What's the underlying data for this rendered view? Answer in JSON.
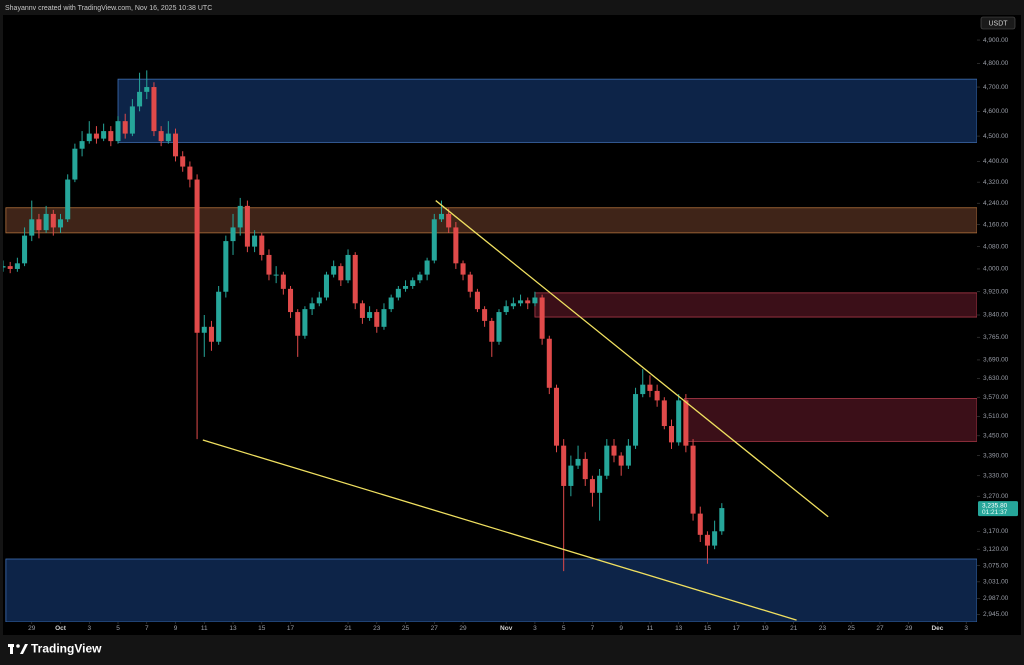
{
  "chart_data": {
    "type": "candlestick",
    "watermark": "Shayannv created with TradingView.com, Nov 16, 2025 10:38 UTC",
    "currency": "USDT",
    "brand": "TradingView",
    "log_scale": true,
    "up_color": "#26a69a",
    "down_color": "#e04a4a",
    "xlim": [
      270.0,
      337.75
    ],
    "ylim": [
      2925,
      5010
    ],
    "xticks": [
      {
        "value": 272,
        "label": "29"
      },
      {
        "value": 274,
        "label": "Oct"
      },
      {
        "value": 276,
        "label": "3"
      },
      {
        "value": 278,
        "label": "5"
      },
      {
        "value": 280,
        "label": "7"
      },
      {
        "value": 282,
        "label": "9"
      },
      {
        "value": 284,
        "label": "11"
      },
      {
        "value": 286,
        "label": "13"
      },
      {
        "value": 288,
        "label": "15"
      },
      {
        "value": 290,
        "label": "17"
      },
      {
        "value": 294,
        "label": "21"
      },
      {
        "value": 296,
        "label": "23"
      },
      {
        "value": 298,
        "label": "25"
      },
      {
        "value": 300,
        "label": "27"
      },
      {
        "value": 302,
        "label": "29"
      },
      {
        "value": 305,
        "label": "Nov"
      },
      {
        "value": 307,
        "label": "3"
      },
      {
        "value": 309,
        "label": "5"
      },
      {
        "value": 311,
        "label": "7"
      },
      {
        "value": 313,
        "label": "9"
      },
      {
        "value": 315,
        "label": "11"
      },
      {
        "value": 317,
        "label": "13"
      },
      {
        "value": 319,
        "label": "15"
      },
      {
        "value": 321,
        "label": "17"
      },
      {
        "value": 323,
        "label": "19"
      },
      {
        "value": 325,
        "label": "21"
      },
      {
        "value": 327,
        "label": "23"
      },
      {
        "value": 329,
        "label": "25"
      },
      {
        "value": 331,
        "label": "27"
      },
      {
        "value": 333,
        "label": "29"
      },
      {
        "value": 335,
        "label": "Dec"
      },
      {
        "value": 337,
        "label": "3"
      }
    ],
    "yticks": [
      {
        "value": 4900,
        "label": "4,900.00"
      },
      {
        "value": 4800,
        "label": "4,800.00"
      },
      {
        "value": 4700,
        "label": "4,700.00"
      },
      {
        "value": 4600,
        "label": "4,600.00"
      },
      {
        "value": 4500,
        "label": "4,500.00"
      },
      {
        "value": 4400,
        "label": "4,400.00"
      },
      {
        "value": 4320,
        "label": "4,320.00"
      },
      {
        "value": 4240,
        "label": "4,240.00"
      },
      {
        "value": 4160,
        "label": "4,160.00"
      },
      {
        "value": 4080,
        "label": "4,080.00"
      },
      {
        "value": 4000,
        "label": "4,000.00"
      },
      {
        "value": 3920,
        "label": "3,920.00"
      },
      {
        "value": 3840,
        "label": "3,840.00"
      },
      {
        "value": 3765,
        "label": "3,765.00"
      },
      {
        "value": 3690,
        "label": "3,690.00"
      },
      {
        "value": 3630,
        "label": "3,630.00"
      },
      {
        "value": 3570,
        "label": "3,570.00"
      },
      {
        "value": 3510,
        "label": "3,510.00"
      },
      {
        "value": 3450,
        "label": "3,450.00"
      },
      {
        "value": 3390,
        "label": "3,390.00"
      },
      {
        "value": 3330,
        "label": "3,330.00"
      },
      {
        "value": 3270,
        "label": "3,270.00"
      },
      {
        "value": 3170,
        "label": "3,170.00"
      },
      {
        "value": 3120,
        "label": "3,120.00"
      },
      {
        "value": 3075,
        "label": "3,075.00"
      },
      {
        "value": 3031,
        "label": "3,031.00"
      },
      {
        "value": 2987,
        "label": "2,987.00"
      },
      {
        "value": 2945,
        "label": "2,945.00"
      }
    ],
    "current_price": {
      "value": 3235.8,
      "label": "3,235.80"
    },
    "countdown": "01:21:37",
    "zones": [
      {
        "x0": 278.0,
        "y": [
          4475,
          4733
        ],
        "fill": "#0f2a55",
        "stroke": "#3f6fb5"
      },
      {
        "x0": 270.2,
        "y": [
          4130,
          4223
        ],
        "fill": "#4a2a1c",
        "stroke": "#b0703c"
      },
      {
        "x0": 307.0,
        "y": [
          3833,
          3916
        ],
        "fill": "#45121c",
        "stroke": "#b03a4a"
      },
      {
        "x0": 317.4,
        "y": [
          3433,
          3566
        ],
        "fill": "#45121c",
        "stroke": "#b03a4a"
      },
      {
        "x0": 270.2,
        "y": [
          2925,
          3093
        ],
        "fill": "#0f2a55",
        "stroke": "#3f6fb5"
      }
    ],
    "trendline_color": "#f0e060",
    "trendlines": [
      {
        "x": [
          300.1,
          327.4
        ],
        "y": [
          4250,
          3211
        ]
      },
      {
        "x": [
          283.9,
          325.2
        ],
        "y": [
          3437,
          2930
        ]
      }
    ],
    "x": [
      270,
      270.5,
      271,
      271.5,
      272,
      272.5,
      273,
      273.5,
      274,
      274.5,
      275,
      275.5,
      276,
      276.5,
      277,
      277.5,
      278,
      278.5,
      279,
      279.5,
      280,
      280.5,
      281,
      281.5,
      282,
      282.5,
      283,
      283.5,
      284,
      284.5,
      285,
      285.5,
      286,
      286.5,
      287,
      287.5,
      288,
      288.5,
      289,
      289.5,
      290,
      290.5,
      291,
      291.5,
      292,
      292.5,
      293,
      293.5,
      294,
      294.5,
      295,
      295.5,
      296,
      296.5,
      297,
      297.5,
      298,
      298.5,
      299,
      299.5,
      300,
      300.5,
      301,
      301.5,
      302,
      302.5,
      303,
      303.5,
      304,
      304.5,
      305,
      305.5,
      306,
      306.5,
      307,
      307.5,
      308,
      308.5,
      309,
      309.5,
      310,
      310.5,
      311,
      311.5,
      312,
      312.5,
      313,
      313.5,
      314,
      314.5,
      315,
      315.5,
      316,
      316.5,
      317,
      317.5,
      318,
      318.5,
      319,
      319.5,
      320
    ],
    "ohlc": [
      [
        4005,
        4030,
        3990,
        4010
      ],
      [
        4010,
        4025,
        3985,
        4000
      ],
      [
        4000,
        4040,
        3990,
        4020
      ],
      [
        4020,
        4150,
        4010,
        4120
      ],
      [
        4120,
        4250,
        4100,
        4180
      ],
      [
        4180,
        4200,
        4110,
        4140
      ],
      [
        4140,
        4230,
        4130,
        4200
      ],
      [
        4200,
        4215,
        4120,
        4150
      ],
      [
        4150,
        4200,
        4130,
        4180
      ],
      [
        4180,
        4350,
        4170,
        4330
      ],
      [
        4330,
        4470,
        4320,
        4450
      ],
      [
        4450,
        4520,
        4420,
        4480
      ],
      [
        4480,
        4560,
        4470,
        4510
      ],
      [
        4510,
        4540,
        4470,
        4490
      ],
      [
        4490,
        4550,
        4480,
        4520
      ],
      [
        4520,
        4540,
        4460,
        4480
      ],
      [
        4480,
        4580,
        4470,
        4560
      ],
      [
        4560,
        4590,
        4490,
        4510
      ],
      [
        4510,
        4650,
        4500,
        4620
      ],
      [
        4620,
        4760,
        4600,
        4680
      ],
      [
        4680,
        4770,
        4650,
        4700
      ],
      [
        4700,
        4720,
        4500,
        4520
      ],
      [
        4520,
        4540,
        4460,
        4480
      ],
      [
        4480,
        4560,
        4470,
        4510
      ],
      [
        4510,
        4530,
        4400,
        4420
      ],
      [
        4420,
        4440,
        4360,
        4380
      ],
      [
        4380,
        4400,
        4300,
        4330
      ],
      [
        4330,
        4350,
        3440,
        3780
      ],
      [
        3780,
        3840,
        3700,
        3800
      ],
      [
        3800,
        3820,
        3720,
        3750
      ],
      [
        3750,
        3940,
        3740,
        3920
      ],
      [
        3920,
        4120,
        3900,
        4100
      ],
      [
        4100,
        4200,
        4050,
        4150
      ],
      [
        4150,
        4260,
        4120,
        4230
      ],
      [
        4230,
        4250,
        4060,
        4080
      ],
      [
        4080,
        4140,
        4060,
        4120
      ],
      [
        4120,
        4130,
        4030,
        4050
      ],
      [
        4050,
        4070,
        3960,
        3980
      ],
      [
        3980,
        4010,
        3950,
        3980
      ],
      [
        3980,
        3990,
        3910,
        3930
      ],
      [
        3930,
        3940,
        3830,
        3850
      ],
      [
        3850,
        3860,
        3700,
        3770
      ],
      [
        3770,
        3870,
        3760,
        3860
      ],
      [
        3860,
        3900,
        3840,
        3880
      ],
      [
        3880,
        3920,
        3870,
        3900
      ],
      [
        3900,
        3990,
        3890,
        3980
      ],
      [
        3980,
        4030,
        3970,
        4010
      ],
      [
        4010,
        4020,
        3940,
        3960
      ],
      [
        3960,
        4070,
        3950,
        4050
      ],
      [
        4050,
        4060,
        3860,
        3880
      ],
      [
        3880,
        3890,
        3810,
        3830
      ],
      [
        3830,
        3870,
        3820,
        3850
      ],
      [
        3850,
        3860,
        3780,
        3800
      ],
      [
        3800,
        3880,
        3790,
        3860
      ],
      [
        3860,
        3910,
        3850,
        3900
      ],
      [
        3900,
        3940,
        3890,
        3930
      ],
      [
        3930,
        3960,
        3920,
        3940
      ],
      [
        3940,
        3970,
        3930,
        3960
      ],
      [
        3960,
        3990,
        3950,
        3980
      ],
      [
        3980,
        4040,
        3960,
        4030
      ],
      [
        4030,
        4200,
        4020,
        4180
      ],
      [
        4180,
        4250,
        4170,
        4200
      ],
      [
        4200,
        4220,
        4130,
        4150
      ],
      [
        4150,
        4170,
        4000,
        4020
      ],
      [
        4020,
        4030,
        3960,
        3980
      ],
      [
        3980,
        3990,
        3900,
        3920
      ],
      [
        3920,
        3930,
        3850,
        3860
      ],
      [
        3860,
        3870,
        3800,
        3820
      ],
      [
        3820,
        3830,
        3700,
        3750
      ],
      [
        3750,
        3860,
        3740,
        3850
      ],
      [
        3850,
        3890,
        3840,
        3870
      ],
      [
        3870,
        3900,
        3860,
        3880
      ],
      [
        3880,
        3910,
        3870,
        3890
      ],
      [
        3890,
        3900,
        3860,
        3880
      ],
      [
        3880,
        3920,
        3870,
        3900
      ],
      [
        3900,
        3910,
        3740,
        3760
      ],
      [
        3760,
        3770,
        3580,
        3600
      ],
      [
        3600,
        3610,
        3400,
        3420
      ],
      [
        3420,
        3440,
        3060,
        3300
      ],
      [
        3300,
        3390,
        3270,
        3360
      ],
      [
        3360,
        3420,
        3350,
        3380
      ],
      [
        3380,
        3400,
        3300,
        3320
      ],
      [
        3320,
        3330,
        3240,
        3280
      ],
      [
        3280,
        3350,
        3200,
        3330
      ],
      [
        3330,
        3440,
        3320,
        3420
      ],
      [
        3420,
        3440,
        3370,
        3390
      ],
      [
        3390,
        3400,
        3330,
        3360
      ],
      [
        3360,
        3440,
        3350,
        3420
      ],
      [
        3420,
        3600,
        3410,
        3580
      ],
      [
        3580,
        3660,
        3570,
        3610
      ],
      [
        3610,
        3640,
        3570,
        3590
      ],
      [
        3590,
        3610,
        3540,
        3560
      ],
      [
        3560,
        3570,
        3470,
        3480
      ],
      [
        3480,
        3500,
        3410,
        3430
      ],
      [
        3430,
        3580,
        3420,
        3560
      ],
      [
        3560,
        3580,
        3400,
        3420
      ],
      [
        3420,
        3440,
        3200,
        3220
      ],
      [
        3220,
        3240,
        3140,
        3160
      ],
      [
        3160,
        3170,
        3080,
        3130
      ],
      [
        3130,
        3200,
        3120,
        3170
      ],
      [
        3170,
        3250,
        3160,
        3235.8
      ]
    ]
  }
}
